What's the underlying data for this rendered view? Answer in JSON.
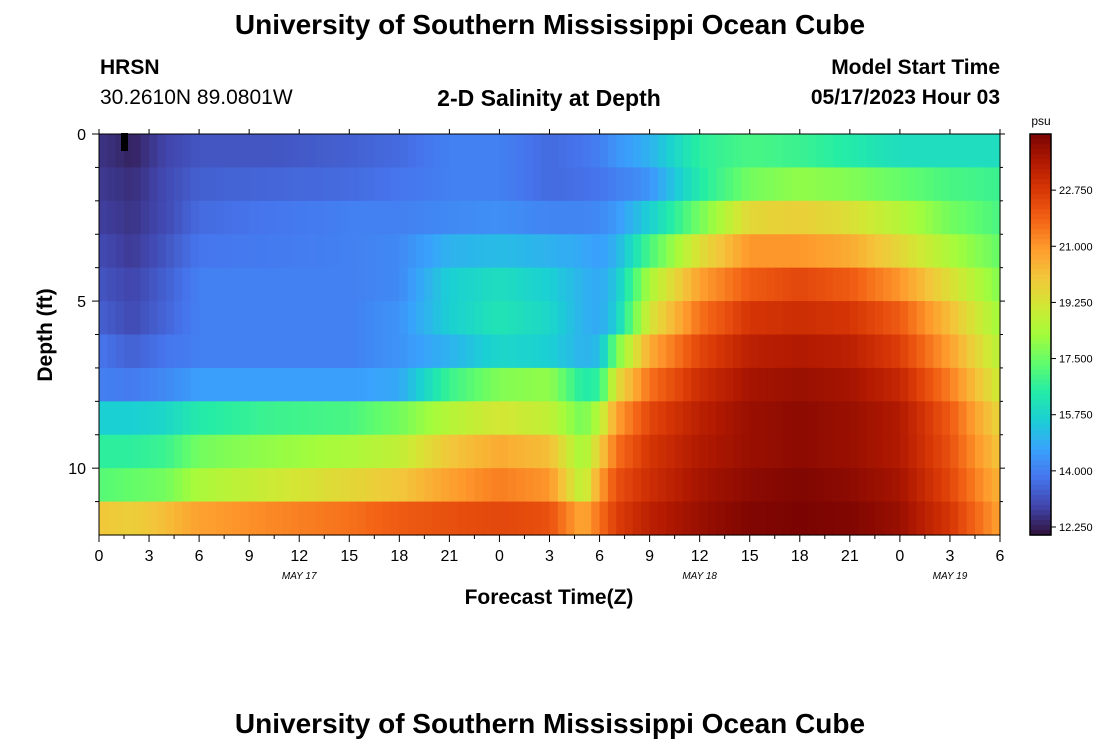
{
  "header": {
    "title": "University of Southern Mississippi Ocean Cube",
    "station": "HRSN",
    "coords": "30.2610N  89.0801W",
    "plot_title": "2-D Salinity at Depth",
    "model_label": "Model Start Time",
    "model_time": "05/17/2023 Hour 03"
  },
  "footer": {
    "title": "University of Southern Mississippi Ocean Cube"
  },
  "chart_data": {
    "type": "heatmap",
    "title": "2-D Salinity at Depth",
    "xlabel": "Forecast Time(Z)",
    "ylabel": "Depth (ft)",
    "x_tick_labels": [
      "0",
      "3",
      "6",
      "9",
      "12",
      "15",
      "18",
      "21",
      "0",
      "3",
      "6",
      "9",
      "12",
      "15",
      "18",
      "21",
      "0",
      "3",
      "6"
    ],
    "x_range_hours": [
      0,
      54
    ],
    "date_labels": [
      {
        "text": "MAY 17",
        "hour": 12
      },
      {
        "text": "MAY 18",
        "hour": 36
      },
      {
        "text": "MAY 19",
        "hour": 51
      }
    ],
    "y_tick_labels": [
      "0",
      "5",
      "10"
    ],
    "y_tick_values": [
      0,
      5,
      10
    ],
    "y_range_ft": [
      0,
      12
    ],
    "colorbar": {
      "unit": "psu",
      "range": [
        12.0,
        24.5
      ],
      "tick_labels": [
        "22.750",
        "21.000",
        "19.250",
        "17.500",
        "15.750",
        "14.000",
        "12.250"
      ],
      "tick_values": [
        22.75,
        21.0,
        19.25,
        17.5,
        15.75,
        14.0,
        12.25
      ],
      "colors": [
        "#30123b",
        "#4145ab",
        "#4675ed",
        "#39a2fc",
        "#1bcfd4",
        "#24eca6",
        "#61fc6c",
        "#a4fc3b",
        "#d1e834",
        "#f3c63a",
        "#fe9b2d",
        "#f36315",
        "#d93806",
        "#b11901",
        "#7a0402"
      ]
    },
    "depth_levels_ft": [
      0.5,
      1.5,
      2.5,
      3.5,
      4.5,
      5.5,
      6.5,
      7.5,
      8.5,
      9.5,
      10.5,
      11.5
    ],
    "time_keyframes_hours": [
      0,
      2,
      4,
      6,
      10,
      15,
      18,
      21,
      24,
      27,
      29,
      30,
      31,
      33,
      36,
      39,
      42,
      45,
      48,
      51,
      54
    ],
    "salinity_psu": [
      [
        12.6,
        12.3,
        12.9,
        13.2,
        13.2,
        13.4,
        13.6,
        14.0,
        14.0,
        13.6,
        13.8,
        14.0,
        14.4,
        15.0,
        16.6,
        17.0,
        16.8,
        16.4,
        16.0,
        16.0,
        16.0
      ],
      [
        12.7,
        12.5,
        13.0,
        13.4,
        13.5,
        13.6,
        13.8,
        14.0,
        14.0,
        13.6,
        13.7,
        13.8,
        14.0,
        14.4,
        16.4,
        17.6,
        18.0,
        17.8,
        17.4,
        17.0,
        16.8
      ],
      [
        12.8,
        12.6,
        13.0,
        13.6,
        13.8,
        14.0,
        14.0,
        14.2,
        14.3,
        14.1,
        14.1,
        14.2,
        14.5,
        15.6,
        17.6,
        19.6,
        19.8,
        19.4,
        18.6,
        17.6,
        17.0
      ],
      [
        13.0,
        12.7,
        13.2,
        13.8,
        13.9,
        14.0,
        14.2,
        15.0,
        15.2,
        15.0,
        14.8,
        14.6,
        15.0,
        17.0,
        19.4,
        21.0,
        21.0,
        20.6,
        19.6,
        18.4,
        17.4
      ],
      [
        13.2,
        12.9,
        13.4,
        14.0,
        14.0,
        14.0,
        14.2,
        15.6,
        16.0,
        15.6,
        15.0,
        14.8,
        15.4,
        18.4,
        20.8,
        22.0,
        22.4,
        22.0,
        21.0,
        19.4,
        17.8
      ],
      [
        13.4,
        13.0,
        13.5,
        14.0,
        14.0,
        14.0,
        14.4,
        15.6,
        16.2,
        15.8,
        15.0,
        14.8,
        15.6,
        19.2,
        21.6,
        22.8,
        23.0,
        22.8,
        22.0,
        20.2,
        18.2
      ],
      [
        13.8,
        13.4,
        13.8,
        14.0,
        14.0,
        14.0,
        14.4,
        15.0,
        15.8,
        15.6,
        15.0,
        15.2,
        17.6,
        20.6,
        22.4,
        23.4,
        23.6,
        23.4,
        22.6,
        20.8,
        18.6
      ],
      [
        14.0,
        13.9,
        14.2,
        14.6,
        14.6,
        14.6,
        14.8,
        16.8,
        17.8,
        18.0,
        16.4,
        16.6,
        19.4,
        21.6,
        23.0,
        23.8,
        24.0,
        23.8,
        23.2,
        21.4,
        19.0
      ],
      [
        15.6,
        15.6,
        15.8,
        16.4,
        16.8,
        17.0,
        17.6,
        18.6,
        19.2,
        18.8,
        17.6,
        18.6,
        20.8,
        22.4,
        23.4,
        24.0,
        24.2,
        24.0,
        23.6,
        22.0,
        19.6
      ],
      [
        16.6,
        16.6,
        16.8,
        17.6,
        18.0,
        18.4,
        18.8,
        20.0,
        20.6,
        20.2,
        18.2,
        19.8,
        21.6,
        22.8,
        23.6,
        24.0,
        24.2,
        24.0,
        23.6,
        22.2,
        20.0
      ],
      [
        17.2,
        17.4,
        17.6,
        18.4,
        19.0,
        19.6,
        20.0,
        20.8,
        21.4,
        21.0,
        18.6,
        20.8,
        22.2,
        23.0,
        23.8,
        24.2,
        24.4,
        24.2,
        23.8,
        22.4,
        20.4
      ],
      [
        20.0,
        19.8,
        20.2,
        20.8,
        21.2,
        21.6,
        22.0,
        22.2,
        22.4,
        22.2,
        20.6,
        21.6,
        22.6,
        23.4,
        24.0,
        24.4,
        24.5,
        24.4,
        24.0,
        22.8,
        20.8
      ]
    ]
  }
}
